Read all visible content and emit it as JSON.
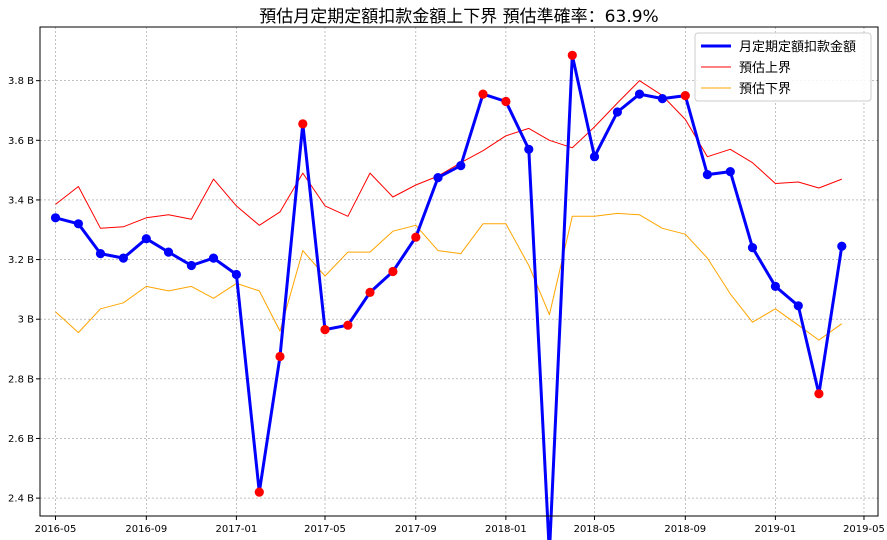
{
  "chart_data": {
    "type": "line",
    "title": "預估月定期定額扣款金額上下界  預估準確率：63.9%",
    "x": [
      "2016-05",
      "2016-06",
      "2016-07",
      "2016-08",
      "2016-09",
      "2016-10",
      "2016-11",
      "2016-12",
      "2017-01",
      "2017-02",
      "2017-03",
      "2017-04",
      "2017-05",
      "2017-06",
      "2017-07",
      "2017-08",
      "2017-09",
      "2017-10",
      "2017-11",
      "2017-12",
      "2018-01",
      "2018-02",
      "2018-03",
      "2018-04",
      "2018-05",
      "2018-06",
      "2018-07",
      "2018-08",
      "2018-09",
      "2018-10",
      "2018-11",
      "2018-12",
      "2019-01",
      "2019-02",
      "2019-03",
      "2019-04"
    ],
    "x_tick_labels": [
      "2016-05",
      "2016-09",
      "2017-01",
      "2017-05",
      "2017-09",
      "2018-01",
      "2018-05",
      "2018-09",
      "2019-01",
      "2019-05"
    ],
    "x_range": [
      "2016-04-10",
      "2019-05-20"
    ],
    "y_tick_labels": [
      "2.4 B",
      "2.6 B",
      "2.8 B",
      "3 B",
      "3.2 B",
      "3.4 B",
      "3.6 B",
      "3.8 B"
    ],
    "y_ticks": [
      2.4,
      2.6,
      2.8,
      3.0,
      3.2,
      3.4,
      3.6,
      3.8
    ],
    "ylim": [
      2.34,
      3.98
    ],
    "y_unit": "B",
    "grid": true,
    "legend_position": "top-right",
    "series": [
      {
        "name": "月定期定額扣款金額",
        "color": "#0000ff",
        "values": [
          3.34,
          3.32,
          3.22,
          3.205,
          3.27,
          3.225,
          3.18,
          3.205,
          3.15,
          2.42,
          2.875,
          3.655,
          2.965,
          2.98,
          3.09,
          3.16,
          3.275,
          3.475,
          3.515,
          3.755,
          3.73,
          3.57,
          2.215,
          3.885,
          3.545,
          3.695,
          3.755,
          3.74,
          3.75,
          3.485,
          3.495,
          3.24,
          3.11,
          3.045,
          2.75,
          3.245
        ]
      },
      {
        "name": "預估上界",
        "color": "#ff0000",
        "values": [
          3.385,
          3.445,
          3.305,
          3.31,
          3.34,
          3.35,
          3.335,
          3.47,
          3.38,
          3.315,
          3.36,
          3.49,
          3.38,
          3.345,
          3.49,
          3.41,
          3.45,
          3.48,
          3.525,
          3.565,
          3.615,
          3.64,
          3.6,
          3.575,
          3.645,
          3.725,
          3.8,
          3.75,
          3.67,
          3.545,
          3.57,
          3.525,
          3.455,
          3.46,
          3.44,
          3.47
        ]
      },
      {
        "name": "預估下界",
        "color": "#ffa500",
        "values": [
          3.025,
          2.955,
          3.035,
          3.055,
          3.11,
          3.095,
          3.11,
          3.07,
          3.12,
          3.095,
          2.96,
          3.23,
          3.145,
          3.225,
          3.225,
          3.295,
          3.315,
          3.23,
          3.22,
          3.32,
          3.32,
          3.18,
          3.015,
          3.345,
          3.345,
          3.355,
          3.35,
          3.305,
          3.285,
          3.205,
          3.085,
          2.99,
          3.035,
          2.98,
          2.93,
          2.985
        ]
      }
    ],
    "out_of_bounds_marker_color": "#ff0000",
    "in_bounds_marker_color": "#0000ff"
  }
}
